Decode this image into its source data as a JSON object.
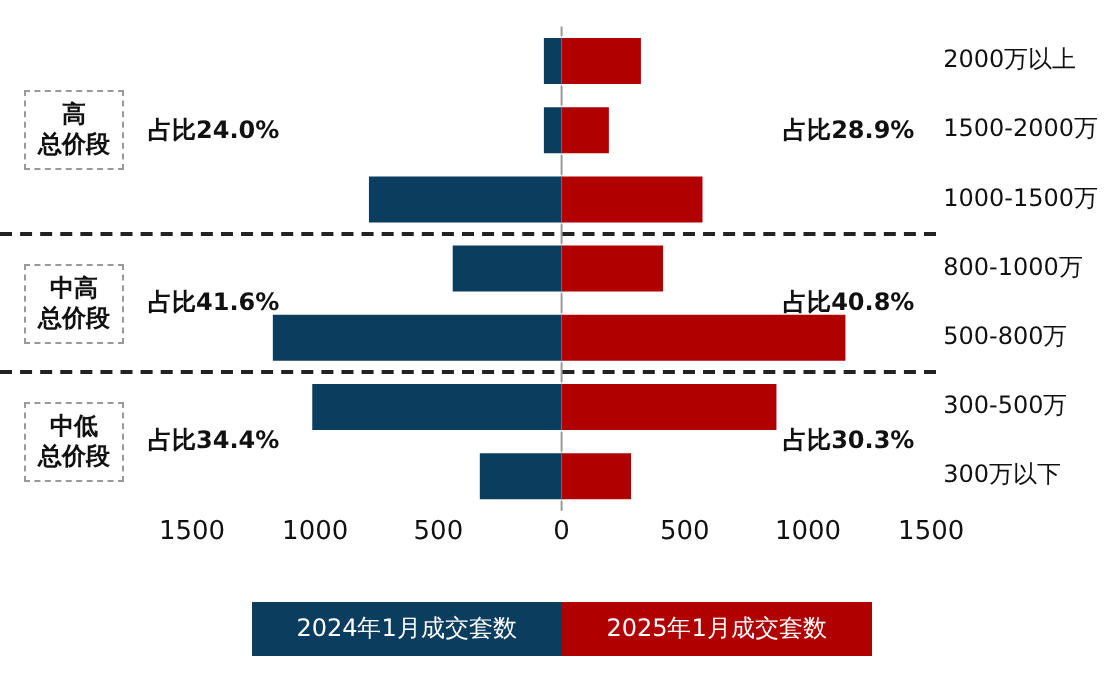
{
  "chart_data": {
    "type": "bar",
    "orientation": "horizontal",
    "stacked": true,
    "categories": [
      "2000万以上",
      "1500-2000万",
      "1000-1500万",
      "800-1000万",
      "500-800万",
      "300-500万",
      "300万以下"
    ],
    "series": [
      {
        "name": "2024年1月成交套数",
        "color": "#0b3d5e",
        "values": [
          -80,
          -80,
          -790,
          -450,
          -1180,
          -1020,
          -340
        ]
      },
      {
        "name": "2025年1月成交套数",
        "color": "#b00000",
        "values": [
          330,
          200,
          580,
          420,
          1160,
          880,
          290
        ]
      }
    ],
    "xlim": [
      -1500,
      1500
    ],
    "xticks": [
      {
        "value": -1500,
        "label": "1500"
      },
      {
        "value": -1000,
        "label": "1000"
      },
      {
        "value": -500,
        "label": "500"
      },
      0,
      500,
      1000,
      1500
    ],
    "annotations": [
      "高总价段",
      "中高总价段",
      "中低总价段",
      "占比24.0%",
      "占比41.6%",
      "占比34.4%",
      "占比28.9%",
      "占比40.8%",
      "占比30.3%"
    ],
    "legend": "bottom",
    "grid": false
  }
}
